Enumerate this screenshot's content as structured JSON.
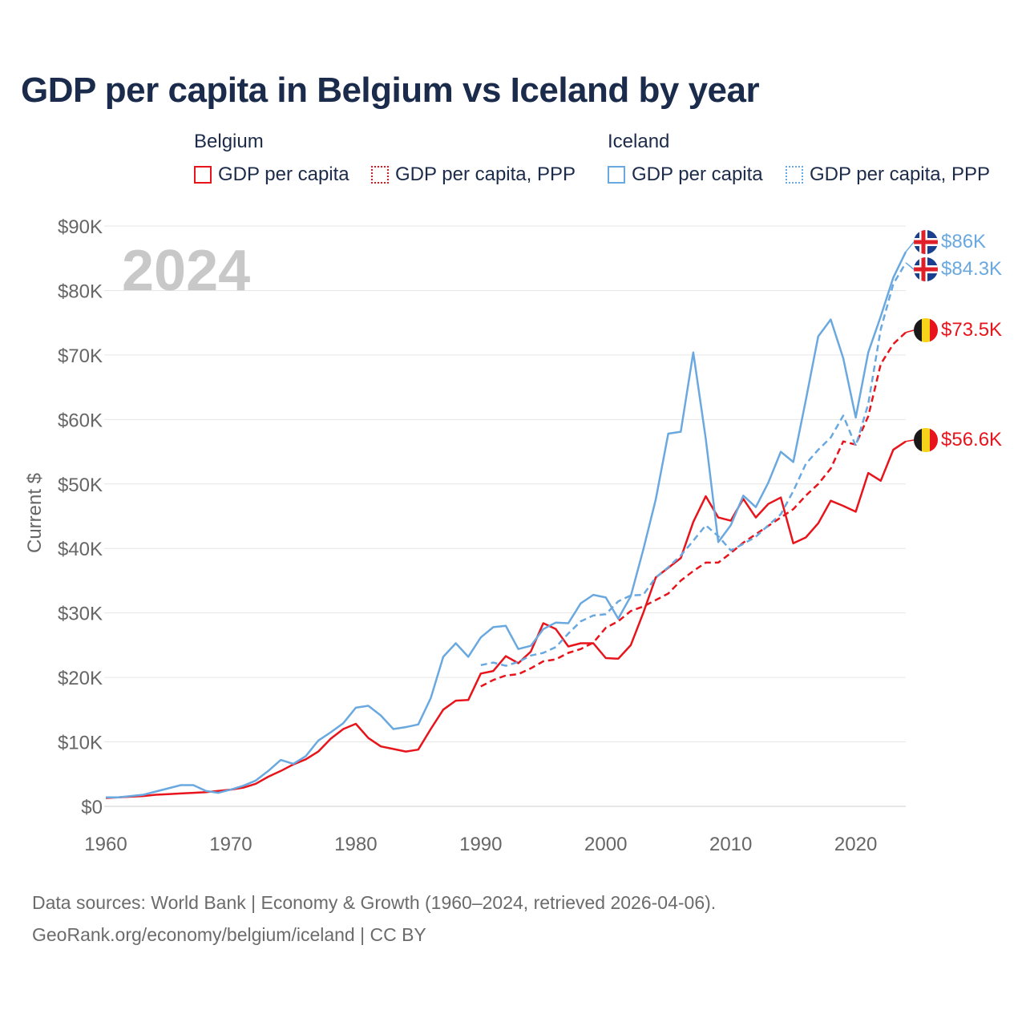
{
  "title": "GDP per capita in Belgium vs Iceland by year",
  "legend": {
    "belgium": {
      "title": "Belgium",
      "gdp": "GDP per capita",
      "ppp": "GDP per capita, PPP"
    },
    "iceland": {
      "title": "Iceland",
      "gdp": "GDP per capita",
      "ppp": "GDP per capita, PPP"
    }
  },
  "source": {
    "line1": "Data sources: World Bank | Economy & Growth (1960–2024, retrieved 2026-04-06).",
    "line2": "GeoRank.org/economy/belgium/iceland | CC BY"
  },
  "colors": {
    "belgium": "#e8141c",
    "iceland": "#6aa8e0",
    "grid": "#e6e6e6",
    "axis_text": "#666666",
    "year_label": "#c8c8c8"
  },
  "chart_data": {
    "type": "line",
    "title": "GDP per capita in Belgium vs Iceland by year",
    "year_label": "2024",
    "xlabel": "",
    "ylabel": "Current $",
    "xlim": [
      1960,
      2024
    ],
    "ylim": [
      0,
      90000
    ],
    "x_ticks": [
      1960,
      1970,
      1980,
      1990,
      2000,
      2010,
      2020
    ],
    "x_tick_labels": [
      "1960",
      "1970",
      "1980",
      "1990",
      "2000",
      "2010",
      "2020"
    ],
    "y_ticks": [
      0,
      10000,
      20000,
      30000,
      40000,
      50000,
      60000,
      70000,
      80000,
      90000
    ],
    "y_tick_labels": [
      "$0",
      "$10K",
      "$20K",
      "$30K",
      "$40K",
      "$50K",
      "$60K",
      "$70K",
      "$80K",
      "$90K"
    ],
    "grid": true,
    "series": [
      {
        "name": "Belgium GDP per capita",
        "country": "belgium",
        "style": "solid",
        "start": 1960,
        "values": [
          1300,
          1400,
          1500,
          1600,
          1800,
          1900,
          2000,
          2100,
          2200,
          2400,
          2600,
          2900,
          3500,
          4600,
          5500,
          6500,
          7300,
          8500,
          10500,
          12000,
          12800,
          10600,
          9300,
          8900,
          8500,
          8800,
          12000,
          15000,
          16400,
          16500,
          20600,
          21000,
          23300,
          22200,
          24000,
          28400,
          27500,
          24800,
          25300,
          25300,
          23000,
          22900,
          25000,
          30000,
          35500,
          37000,
          38500,
          44100,
          48100,
          44800,
          44300,
          47700,
          44800,
          46900,
          47900,
          40800,
          41700,
          43900,
          47400,
          46600,
          45700,
          51700,
          50500,
          55300,
          56600
        ],
        "end_label": "$56.6K"
      },
      {
        "name": "Belgium GDP per capita, PPP",
        "country": "belgium",
        "style": "dashed",
        "start": 1990,
        "values": [
          18600,
          19600,
          20300,
          20500,
          21400,
          22500,
          22800,
          23800,
          24400,
          25400,
          27700,
          28700,
          30300,
          31000,
          32000,
          33000,
          35000,
          36500,
          37800,
          37800,
          39300,
          40900,
          42200,
          43500,
          44800,
          46100,
          48200,
          50000,
          52400,
          56600,
          56100,
          60500,
          68600,
          71700,
          73500
        ],
        "end_label": "$73.5K"
      },
      {
        "name": "Iceland GDP per capita",
        "country": "iceland",
        "style": "solid",
        "start": 1960,
        "values": [
          1400,
          1400,
          1600,
          1800,
          2300,
          2800,
          3300,
          3300,
          2400,
          2100,
          2600,
          3200,
          4000,
          5500,
          7200,
          6600,
          7800,
          10200,
          11500,
          12900,
          15300,
          15600,
          14100,
          12000,
          12300,
          12700,
          16800,
          23200,
          25300,
          23200,
          26200,
          27800,
          28000,
          24400,
          24900,
          27500,
          28500,
          28400,
          31500,
          32800,
          32400,
          29100,
          32600,
          39800,
          47600,
          57800,
          58100,
          70400,
          57000,
          41000,
          43600,
          48200,
          46400,
          50200,
          55000,
          53400,
          63000,
          72900,
          75500,
          69500,
          60300,
          70400,
          76000,
          82000,
          86000
        ],
        "end_label": "$86K"
      },
      {
        "name": "Iceland GDP per capita, PPP",
        "country": "iceland",
        "style": "dashed",
        "start": 1990,
        "values": [
          21900,
          22300,
          21800,
          22400,
          23400,
          23800,
          24700,
          26800,
          28700,
          29600,
          29800,
          31800,
          32700,
          32800,
          35500,
          37100,
          38900,
          41200,
          43600,
          41900,
          39700,
          40700,
          41800,
          43600,
          45300,
          48900,
          53100,
          55300,
          57200,
          60600,
          55900,
          62400,
          74000,
          81000,
          84300
        ],
        "end_label": "$84.3K"
      }
    ]
  }
}
